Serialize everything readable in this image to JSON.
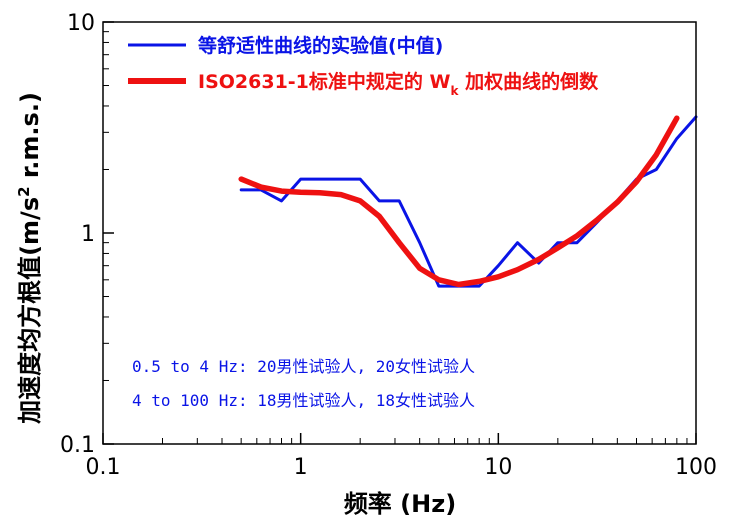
{
  "chart_data": {
    "type": "line",
    "x_scale": "log",
    "y_scale": "log",
    "xlim": [
      0.1,
      100
    ],
    "ylim": [
      0.1,
      10
    ],
    "x_ticks": [
      "0.1",
      "1",
      "10",
      "100"
    ],
    "y_ticks": [
      "0.1",
      "1",
      "10"
    ],
    "xlabel": "频率 (Hz)",
    "ylabel_main": "加速度均方根值(m/s",
    "ylabel_sup": "2",
    "ylabel_tail": " r.m.s.)",
    "legend_position": "top-left",
    "series": [
      {
        "name": "等舒适性曲线的实验值(中值)",
        "color": "#0a14e6",
        "x": [
          0.5,
          0.63,
          0.8,
          1.0,
          1.25,
          1.6,
          2.0,
          2.5,
          3.15,
          4.0,
          5.0,
          6.3,
          8.0,
          10,
          12.5,
          16,
          20,
          25,
          31.5,
          40,
          50,
          63,
          80,
          100
        ],
        "y": [
          1.6,
          1.6,
          1.42,
          1.8,
          1.8,
          1.8,
          1.8,
          1.42,
          1.42,
          0.9,
          0.56,
          0.56,
          0.56,
          0.7,
          0.9,
          0.72,
          0.9,
          0.9,
          1.12,
          1.42,
          1.8,
          2.0,
          2.8,
          3.55
        ]
      },
      {
        "name_pre": "ISO2631-1标准中规定的 W",
        "name_sub": "k",
        "name_post": " 加权曲线的倒数",
        "color": "#ee1111",
        "x": [
          0.5,
          0.63,
          0.8,
          1.0,
          1.25,
          1.6,
          2.0,
          2.5,
          3.15,
          4.0,
          5.0,
          6.3,
          8.0,
          10,
          12.5,
          16,
          20,
          25,
          31.5,
          40,
          50,
          63,
          80
        ],
        "y": [
          1.8,
          1.65,
          1.58,
          1.56,
          1.55,
          1.52,
          1.42,
          1.2,
          0.9,
          0.68,
          0.6,
          0.57,
          0.59,
          0.62,
          0.67,
          0.75,
          0.85,
          0.97,
          1.15,
          1.4,
          1.75,
          2.35,
          3.5
        ]
      }
    ],
    "annotations": [
      "0.5 to 4 Hz: 20男性试验人, 20女性试验人",
      "4 to 100 Hz: 18男性试验人, 18女性试验人"
    ],
    "annotation_color": "#0a14e6"
  }
}
